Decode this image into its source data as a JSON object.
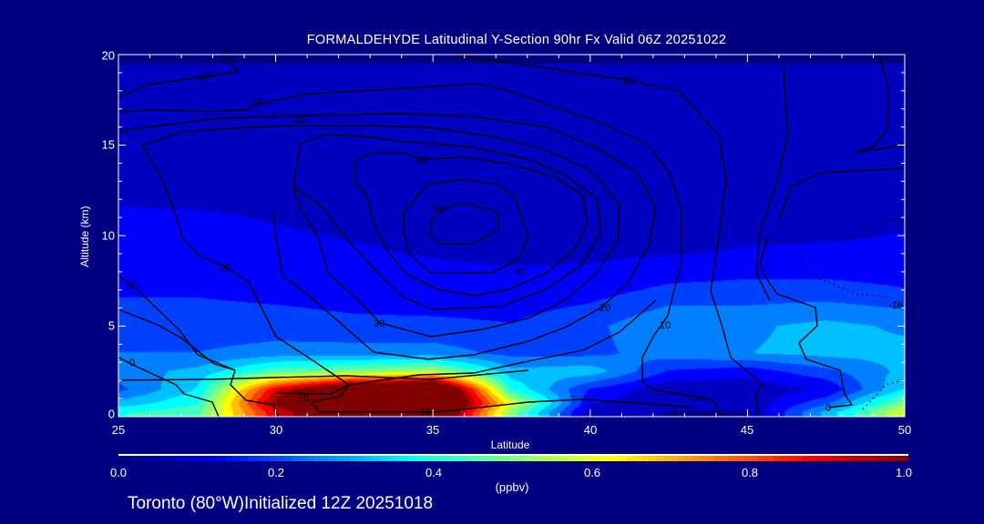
{
  "chart_data": {
    "type": "heatmap",
    "title": "FORMALDEHYDE Latitudinal Y-Section 90hr  Fx Valid 06Z 20251022",
    "xlabel": "Latitude",
    "ylabel": "Altitude (km)",
    "xlim": [
      25,
      50
    ],
    "ylim": [
      0,
      20
    ],
    "x_ticks": [
      "25",
      "30",
      "35",
      "40",
      "45",
      "50"
    ],
    "y_ticks": [
      "0",
      "5",
      "10",
      "15",
      "20"
    ],
    "colorbar": {
      "range": [
        0.0,
        1.0
      ],
      "ticks": [
        "0.0",
        "0.2",
        "0.4",
        "0.6",
        "0.8",
        "1.0"
      ],
      "units": "(ppbv)",
      "colormap": "jet"
    },
    "grid_lat": [
      25,
      27.5,
      30,
      32.5,
      35,
      37.5,
      40,
      42.5,
      45,
      47.5,
      50
    ],
    "grid_alt_km": [
      0.25,
      0.75,
      1.5,
      2.5,
      3.5,
      5,
      7,
      9,
      11,
      13,
      16,
      20
    ],
    "values_ppbv": [
      [
        0.4,
        0.45,
        0.9,
        1.2,
        1.2,
        0.5,
        0.05,
        0.03,
        0.03,
        0.3,
        0.6
      ],
      [
        0.3,
        0.4,
        1.0,
        1.3,
        1.3,
        0.6,
        0.1,
        0.05,
        0.05,
        0.2,
        0.5
      ],
      [
        0.2,
        0.35,
        0.9,
        1.2,
        1.3,
        0.4,
        0.15,
        0.05,
        0.05,
        0.1,
        0.35
      ],
      [
        0.25,
        0.3,
        0.45,
        0.5,
        0.55,
        0.3,
        0.32,
        0.15,
        0.12,
        0.2,
        0.3
      ],
      [
        0.22,
        0.22,
        0.25,
        0.25,
        0.25,
        0.2,
        0.2,
        0.25,
        0.28,
        0.3,
        0.3
      ],
      [
        0.18,
        0.18,
        0.18,
        0.17,
        0.17,
        0.16,
        0.2,
        0.28,
        0.27,
        0.3,
        0.27
      ],
      [
        0.15,
        0.15,
        0.14,
        0.13,
        0.12,
        0.12,
        0.13,
        0.17,
        0.18,
        0.18,
        0.16
      ],
      [
        0.12,
        0.12,
        0.11,
        0.1,
        0.09,
        0.08,
        0.08,
        0.09,
        0.1,
        0.1,
        0.1
      ],
      [
        0.1,
        0.1,
        0.09,
        0.08,
        0.07,
        0.06,
        0.05,
        0.06,
        0.07,
        0.08,
        0.09
      ],
      [
        0.08,
        0.07,
        0.06,
        0.05,
        0.05,
        0.04,
        0.04,
        0.04,
        0.04,
        0.05,
        0.05
      ],
      [
        0.04,
        0.04,
        0.04,
        0.04,
        0.04,
        0.04,
        0.04,
        0.04,
        0.04,
        0.04,
        0.04
      ],
      [
        0.03,
        0.03,
        0.03,
        0.03,
        0.03,
        0.03,
        0.03,
        0.03,
        0.03,
        0.03,
        0.03
      ]
    ],
    "contour_labels": [
      "10",
      "10",
      "20",
      "30",
      "40",
      "50",
      "40",
      "20",
      "10",
      "0",
      "30",
      "10",
      "10",
      "20",
      "10",
      "0",
      "-10"
    ]
  },
  "footer": "Toronto (80°W)Initialized 12Z 20251018"
}
